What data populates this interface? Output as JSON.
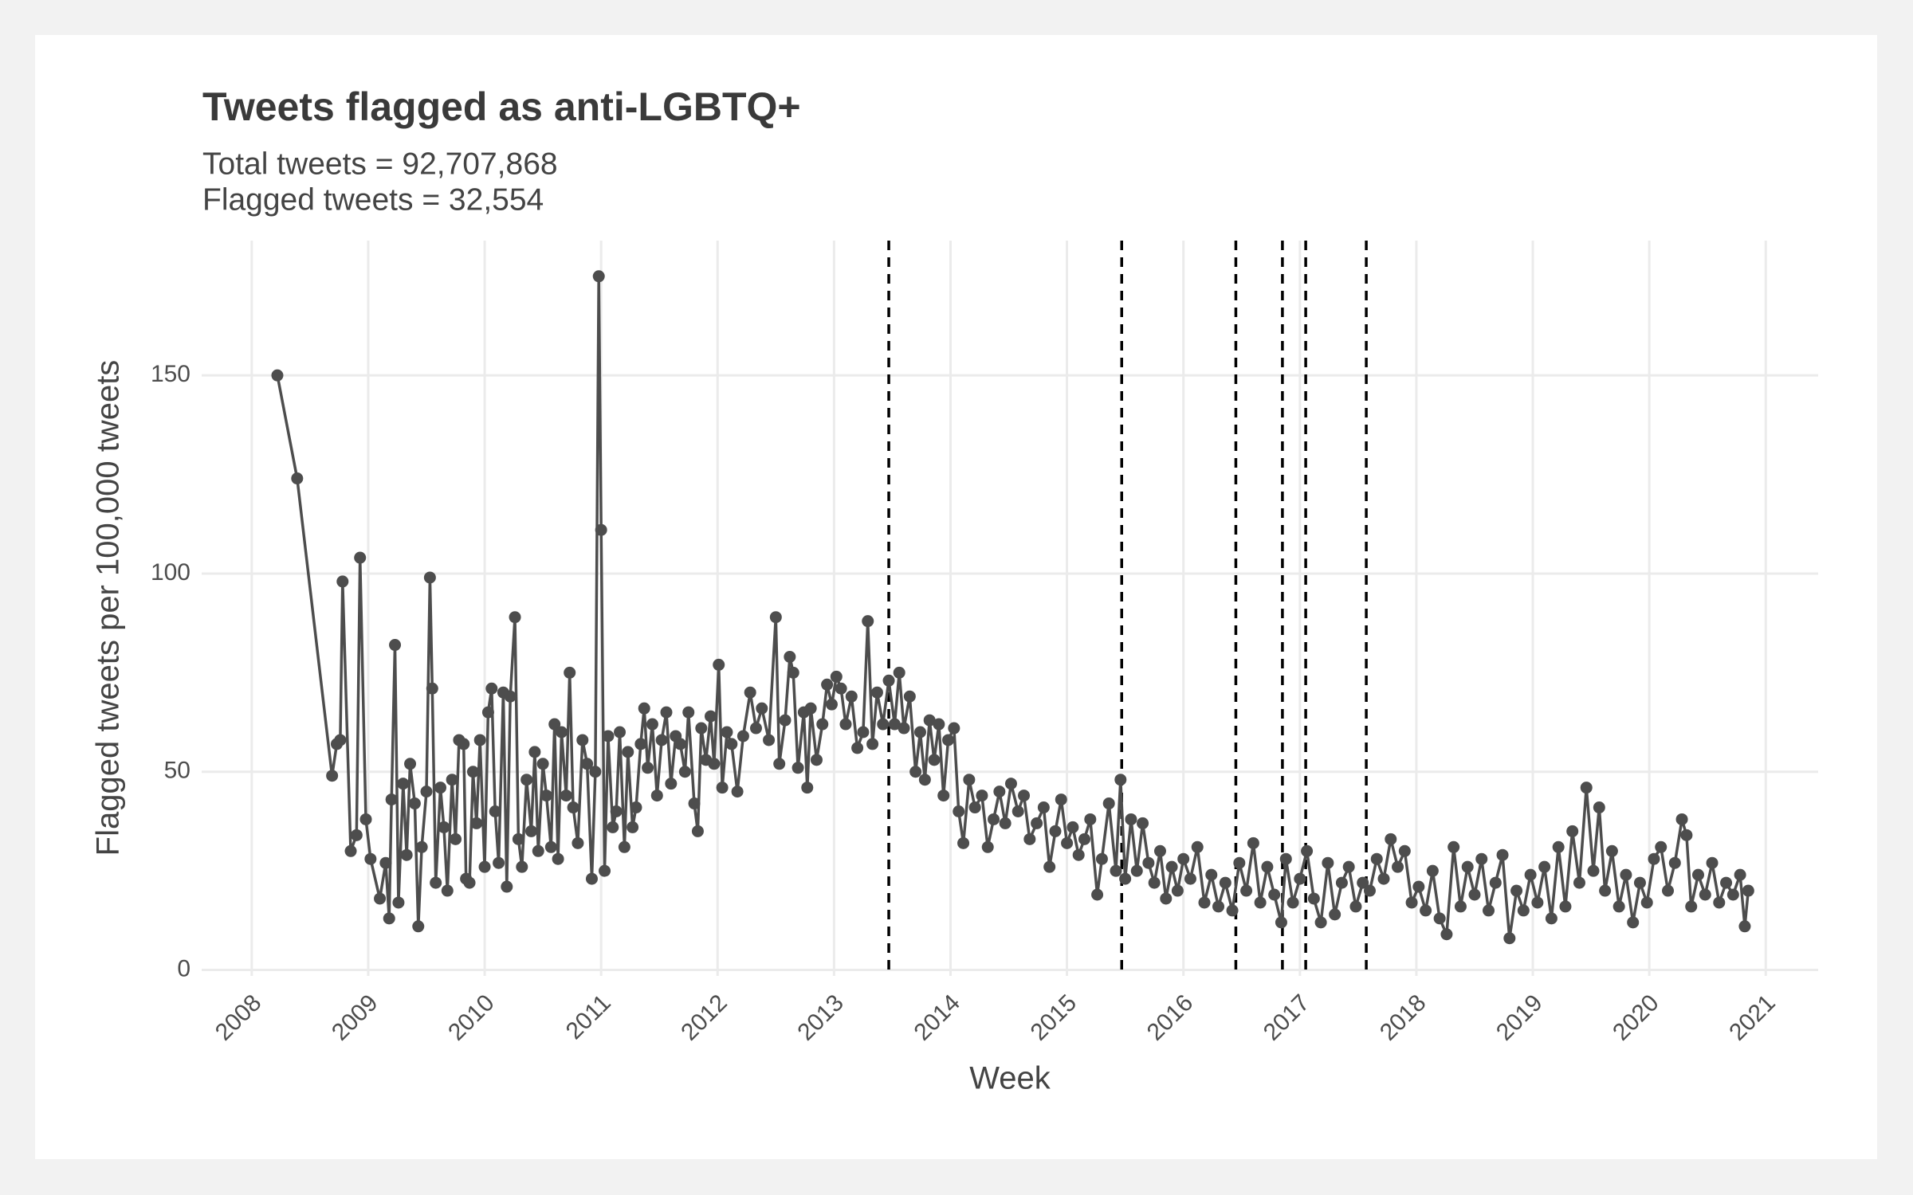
{
  "chart_data": {
    "type": "line",
    "title": "Tweets flagged as anti-LGBTQ+",
    "subtitle": [
      "Total tweets = 92,707,868",
      "Flagged tweets = 32,554"
    ],
    "x_label": "Week",
    "y_label": "Flagged tweets per 100,000 tweets",
    "color": "#4d4d4d",
    "grid": true,
    "xlim": [
      2007.57,
      2021.45
    ],
    "ylim": [
      -1.5,
      184
    ],
    "xticks": [
      2008,
      2009,
      2010,
      2011,
      2012,
      2013,
      2014,
      2015,
      2016,
      2017,
      2018,
      2019,
      2020,
      2021
    ],
    "yticks": [
      0,
      50,
      100,
      150
    ],
    "vlines": [
      2013.47,
      2015.47,
      2016.45,
      2016.85,
      2017.05,
      2017.57
    ],
    "vline_color": "#000000",
    "x": [
      2008.22,
      2008.39,
      2008.69,
      2008.73,
      2008.76,
      2008.78,
      2008.85,
      2008.9,
      2008.93,
      2008.98,
      2009.02,
      2009.1,
      2009.15,
      2009.18,
      2009.2,
      2009.23,
      2009.26,
      2009.3,
      2009.33,
      2009.36,
      2009.4,
      2009.43,
      2009.46,
      2009.5,
      2009.53,
      2009.55,
      2009.58,
      2009.62,
      2009.65,
      2009.68,
      2009.72,
      2009.75,
      2009.78,
      2009.82,
      2009.84,
      2009.87,
      2009.9,
      2009.93,
      2009.96,
      2010.0,
      2010.03,
      2010.06,
      2010.09,
      2010.12,
      2010.16,
      2010.19,
      2010.22,
      2010.26,
      2010.29,
      2010.32,
      2010.36,
      2010.4,
      2010.43,
      2010.46,
      2010.5,
      2010.53,
      2010.57,
      2010.6,
      2010.63,
      2010.66,
      2010.7,
      2010.73,
      2010.76,
      2010.8,
      2010.84,
      2010.88,
      2010.92,
      2010.95,
      2010.98,
      2011.0,
      2011.03,
      2011.06,
      2011.1,
      2011.13,
      2011.16,
      2011.2,
      2011.23,
      2011.27,
      2011.3,
      2011.34,
      2011.37,
      2011.4,
      2011.44,
      2011.48,
      2011.52,
      2011.56,
      2011.6,
      2011.64,
      2011.68,
      2011.72,
      2011.75,
      2011.8,
      2011.83,
      2011.86,
      2011.9,
      2011.94,
      2011.97,
      2012.01,
      2012.04,
      2012.08,
      2012.12,
      2012.17,
      2012.22,
      2012.28,
      2012.33,
      2012.38,
      2012.44,
      2012.5,
      2012.53,
      2012.58,
      2012.62,
      2012.65,
      2012.69,
      2012.74,
      2012.77,
      2012.8,
      2012.85,
      2012.9,
      2012.94,
      2012.98,
      2013.02,
      2013.06,
      2013.1,
      2013.15,
      2013.2,
      2013.25,
      2013.29,
      2013.33,
      2013.37,
      2013.42,
      2013.47,
      2013.52,
      2013.56,
      2013.6,
      2013.65,
      2013.7,
      2013.74,
      2013.78,
      2013.82,
      2013.86,
      2013.9,
      2013.94,
      2013.98,
      2014.03,
      2014.07,
      2014.11,
      2014.16,
      2014.21,
      2014.27,
      2014.32,
      2014.37,
      2014.42,
      2014.47,
      2014.52,
      2014.58,
      2014.63,
      2014.68,
      2014.74,
      2014.8,
      2014.85,
      2014.9,
      2014.95,
      2015.0,
      2015.05,
      2015.1,
      2015.15,
      2015.2,
      2015.26,
      2015.3,
      2015.36,
      2015.42,
      2015.46,
      2015.5,
      2015.55,
      2015.6,
      2015.65,
      2015.7,
      2015.75,
      2015.8,
      2015.85,
      2015.9,
      2015.95,
      2016.0,
      2016.06,
      2016.12,
      2016.18,
      2016.24,
      2016.3,
      2016.36,
      2016.42,
      2016.48,
      2016.54,
      2016.6,
      2016.66,
      2016.72,
      2016.78,
      2016.84,
      2016.88,
      2016.94,
      2017.0,
      2017.06,
      2017.12,
      2017.18,
      2017.24,
      2017.3,
      2017.36,
      2017.42,
      2017.48,
      2017.54,
      2017.6,
      2017.66,
      2017.72,
      2017.78,
      2017.84,
      2017.9,
      2017.96,
      2018.02,
      2018.08,
      2018.14,
      2018.2,
      2018.26,
      2018.32,
      2018.38,
      2018.44,
      2018.5,
      2018.56,
      2018.62,
      2018.68,
      2018.74,
      2018.8,
      2018.86,
      2018.92,
      2018.98,
      2019.04,
      2019.1,
      2019.16,
      2019.22,
      2019.28,
      2019.34,
      2019.4,
      2019.46,
      2019.52,
      2019.57,
      2019.62,
      2019.68,
      2019.74,
      2019.8,
      2019.86,
      2019.92,
      2019.98,
      2020.04,
      2020.1,
      2020.16,
      2020.22,
      2020.28,
      2020.32,
      2020.36,
      2020.42,
      2020.48,
      2020.54,
      2020.6,
      2020.66,
      2020.72,
      2020.78,
      2020.82,
      2020.85
    ],
    "values": [
      150,
      124,
      49,
      57,
      58,
      98,
      30,
      34,
      104,
      38,
      28,
      18,
      27,
      13,
      43,
      82,
      17,
      47,
      29,
      52,
      42,
      11,
      31,
      45,
      99,
      71,
      22,
      46,
      36,
      20,
      48,
      33,
      58,
      57,
      23,
      22,
      50,
      37,
      58,
      26,
      65,
      71,
      40,
      27,
      70,
      21,
      69,
      89,
      33,
      26,
      48,
      35,
      55,
      30,
      52,
      44,
      31,
      62,
      28,
      60,
      44,
      75,
      41,
      32,
      58,
      52,
      23,
      50,
      175,
      111,
      25,
      59,
      36,
      40,
      60,
      31,
      55,
      36,
      41,
      57,
      66,
      51,
      62,
      44,
      58,
      65,
      47,
      59,
      57,
      50,
      65,
      42,
      35,
      61,
      53,
      64,
      52,
      77,
      46,
      60,
      57,
      45,
      59,
      70,
      61,
      66,
      58,
      89,
      52,
      63,
      79,
      75,
      51,
      65,
      46,
      66,
      53,
      62,
      72,
      67,
      74,
      71,
      62,
      69,
      56,
      60,
      88,
      57,
      70,
      62,
      73,
      62,
      75,
      61,
      69,
      50,
      60,
      48,
      63,
      53,
      62,
      44,
      58,
      61,
      40,
      32,
      48,
      41,
      44,
      31,
      38,
      45,
      37,
      47,
      40,
      44,
      33,
      37,
      41,
      26,
      35,
      43,
      32,
      36,
      29,
      33,
      38,
      19,
      28,
      42,
      25,
      48,
      23,
      38,
      25,
      37,
      27,
      22,
      30,
      18,
      26,
      20,
      28,
      23,
      31,
      17,
      24,
      16,
      22,
      15,
      27,
      20,
      32,
      17,
      26,
      19,
      12,
      28,
      17,
      23,
      30,
      18,
      12,
      27,
      14,
      22,
      26,
      16,
      22,
      20,
      28,
      23,
      33,
      26,
      30,
      17,
      21,
      15,
      25,
      13,
      9,
      31,
      16,
      26,
      19,
      28,
      15,
      22,
      29,
      8,
      20,
      15,
      24,
      17,
      26,
      13,
      31,
      16,
      35,
      22,
      46,
      25,
      41,
      20,
      30,
      16,
      24,
      12,
      22,
      17,
      28,
      31,
      20,
      27,
      38,
      34,
      16,
      24,
      19,
      27,
      17,
      22,
      19,
      24,
      11,
      20
    ]
  }
}
